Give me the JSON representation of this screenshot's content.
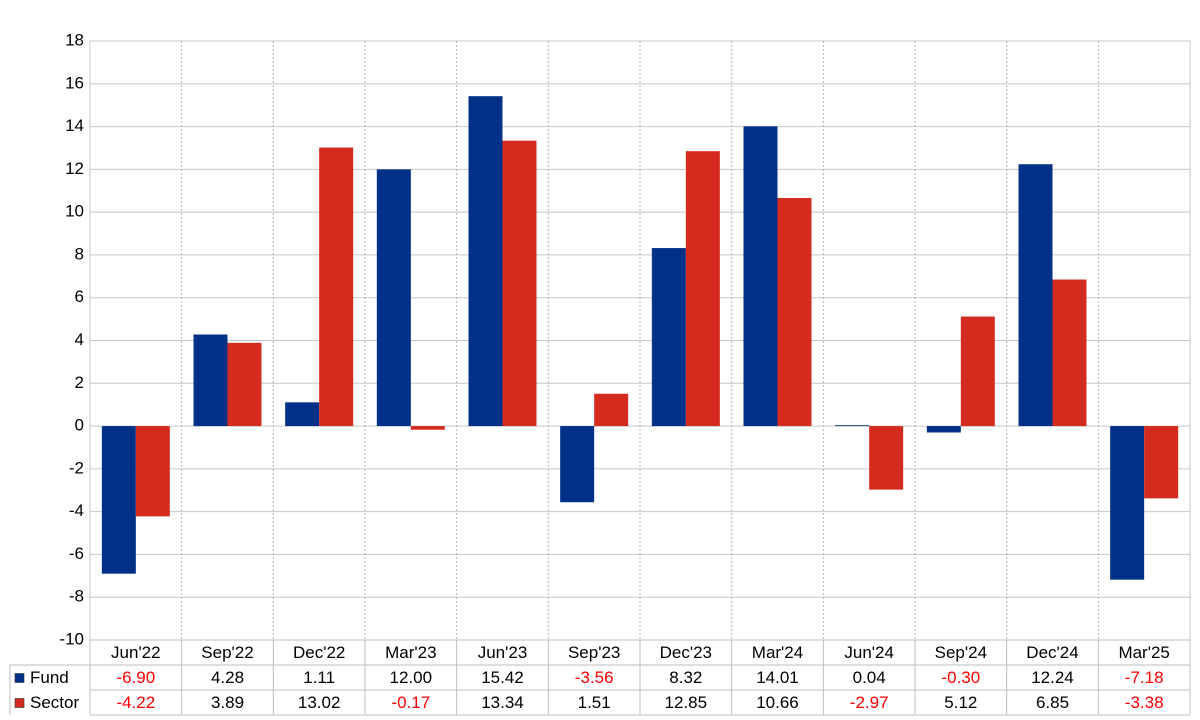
{
  "chart_data": {
    "type": "bar",
    "categories": [
      "Jun'22",
      "Sep'22",
      "Dec'22",
      "Mar'23",
      "Jun'23",
      "Sep'23",
      "Dec'23",
      "Mar'24",
      "Jun'24",
      "Sep'24",
      "Dec'24",
      "Mar'25"
    ],
    "series": [
      {
        "name": "Fund",
        "color": "#003087",
        "values": [
          -6.9,
          4.28,
          1.11,
          12.0,
          15.42,
          -3.56,
          8.32,
          14.01,
          0.04,
          -0.3,
          12.24,
          -7.18
        ],
        "value_labels": [
          "-6.90",
          "4.28",
          "1.11",
          "12.00",
          "15.42",
          "-3.56",
          "8.32",
          "14.01",
          "0.04",
          "-0.30",
          "12.24",
          "-7.18"
        ]
      },
      {
        "name": "Sector",
        "color": "#d52b1e",
        "values": [
          -4.22,
          3.89,
          13.02,
          -0.17,
          13.34,
          1.51,
          12.85,
          10.66,
          -2.97,
          5.12,
          6.85,
          -3.38
        ],
        "value_labels": [
          "-4.22",
          "3.89",
          "13.02",
          "-0.17",
          "13.34",
          "1.51",
          "12.85",
          "10.66",
          "-2.97",
          "5.12",
          "6.85",
          "-3.38"
        ]
      }
    ],
    "ylim": [
      -10,
      18
    ],
    "yticks": [
      -10,
      -8,
      -6,
      -4,
      -2,
      0,
      2,
      4,
      6,
      8,
      10,
      12,
      14,
      16,
      18
    ],
    "grid": true,
    "negative_label_color": "#ff0000"
  }
}
